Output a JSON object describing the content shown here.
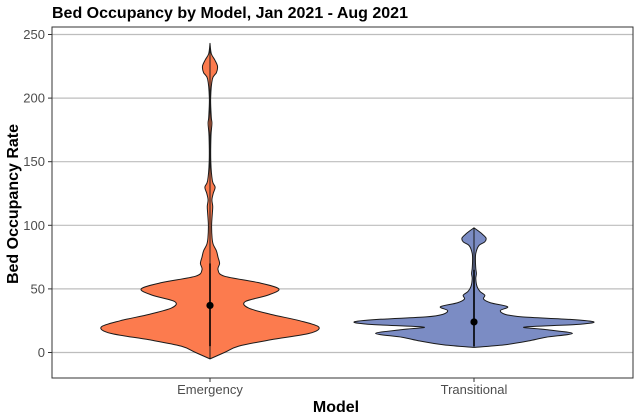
{
  "chart_data": {
    "type": "violin",
    "title": "Bed Occupancy by Model, Jan 2021 - Aug 2021",
    "xlabel": "Model",
    "ylabel": "Bed Occupancy Rate",
    "categories": [
      "Emergency",
      "Transitional"
    ],
    "ylim": [
      -20,
      252
    ],
    "yticks": [
      0,
      50,
      100,
      150,
      200,
      250
    ],
    "grid": true,
    "legend": "none",
    "series": [
      {
        "category": "Emergency",
        "color": "#FC7B4E",
        "min": -5,
        "max": 243,
        "median": 37,
        "line_range": [
          5,
          70
        ],
        "density": [
          [
            -5,
            0.0
          ],
          [
            0,
            0.09
          ],
          [
            5,
            0.18
          ],
          [
            10,
            0.38
          ],
          [
            15,
            0.62
          ],
          [
            20,
            0.68
          ],
          [
            25,
            0.56
          ],
          [
            30,
            0.38
          ],
          [
            35,
            0.24
          ],
          [
            40,
            0.22
          ],
          [
            45,
            0.36
          ],
          [
            50,
            0.43
          ],
          [
            55,
            0.3
          ],
          [
            60,
            0.09
          ],
          [
            65,
            0.05
          ],
          [
            70,
            0.06
          ],
          [
            75,
            0.05
          ],
          [
            80,
            0.04
          ],
          [
            85,
            0.02
          ],
          [
            90,
            0.013
          ],
          [
            100,
            0.01
          ],
          [
            110,
            0.015
          ],
          [
            115,
            0.017
          ],
          [
            120,
            0.012
          ],
          [
            125,
            0.02
          ],
          [
            130,
            0.032
          ],
          [
            135,
            0.015
          ],
          [
            150,
            0.005
          ],
          [
            170,
            0.006
          ],
          [
            180,
            0.012
          ],
          [
            185,
            0.008
          ],
          [
            200,
            0.004
          ],
          [
            215,
            0.015
          ],
          [
            220,
            0.04
          ],
          [
            225,
            0.047
          ],
          [
            230,
            0.03
          ],
          [
            235,
            0.008
          ],
          [
            243,
            0.0
          ]
        ]
      },
      {
        "category": "Transitional",
        "color": "#7B8CC4",
        "min": 4,
        "max": 98,
        "median": 24,
        "line_range": [
          5,
          65
        ],
        "density": [
          [
            4,
            0.0
          ],
          [
            6,
            0.25
          ],
          [
            9,
            0.45
          ],
          [
            12,
            0.6
          ],
          [
            15,
            0.82
          ],
          [
            18,
            0.6
          ],
          [
            20,
            0.42
          ],
          [
            22,
            0.85
          ],
          [
            24,
            1.0
          ],
          [
            26,
            0.8
          ],
          [
            28,
            0.4
          ],
          [
            30,
            0.26
          ],
          [
            33,
            0.22
          ],
          [
            36,
            0.28
          ],
          [
            39,
            0.14
          ],
          [
            42,
            0.08
          ],
          [
            45,
            0.09
          ],
          [
            48,
            0.05
          ],
          [
            52,
            0.025
          ],
          [
            58,
            0.015
          ],
          [
            62,
            0.02
          ],
          [
            66,
            0.015
          ],
          [
            72,
            0.012
          ],
          [
            78,
            0.015
          ],
          [
            84,
            0.04
          ],
          [
            87,
            0.09
          ],
          [
            90,
            0.1
          ],
          [
            93,
            0.07
          ],
          [
            96,
            0.03
          ],
          [
            98,
            0.0
          ]
        ]
      }
    ]
  }
}
